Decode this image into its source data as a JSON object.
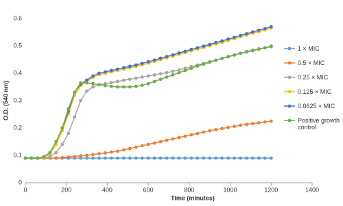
{
  "chart_data": {
    "type": "line",
    "xlabel": "Time (minutes)",
    "ylabel": "O.D. (540 nm)",
    "x": [
      0,
      30,
      60,
      90,
      120,
      150,
      180,
      210,
      240,
      270,
      300,
      330,
      360,
      390,
      420,
      450,
      480,
      510,
      540,
      570,
      600,
      630,
      660,
      690,
      720,
      750,
      780,
      810,
      840,
      870,
      900,
      930,
      960,
      990,
      1020,
      1050,
      1080,
      1110,
      1140,
      1170,
      1200
    ],
    "xlim": [
      0,
      1400
    ],
    "xticks": [
      0,
      200,
      400,
      600,
      800,
      1000,
      1200,
      1400
    ],
    "ylim": [
      0,
      0.6
    ],
    "yticks": [
      0,
      0.1,
      0.2,
      0.3,
      0.4,
      0.5,
      0.6
    ],
    "series": [
      {
        "name": "1 × MIC",
        "color": "#5b9bd5",
        "values": [
          0.09,
          0.09,
          0.09,
          0.09,
          0.09,
          0.09,
          0.09,
          0.09,
          0.09,
          0.09,
          0.09,
          0.09,
          0.09,
          0.09,
          0.09,
          0.09,
          0.09,
          0.09,
          0.09,
          0.09,
          0.09,
          0.09,
          0.09,
          0.09,
          0.09,
          0.09,
          0.09,
          0.09,
          0.09,
          0.09,
          0.09,
          0.09,
          0.09,
          0.09,
          0.09,
          0.09,
          0.09,
          0.09,
          0.09,
          0.09,
          0.09
        ]
      },
      {
        "name": "0.5 × MIC",
        "color": "#ed7d31",
        "values": [
          0.09,
          0.09,
          0.09,
          0.09,
          0.09,
          0.09,
          0.092,
          0.094,
          0.096,
          0.098,
          0.1,
          0.103,
          0.106,
          0.109,
          0.112,
          0.115,
          0.12,
          0.125,
          0.13,
          0.135,
          0.14,
          0.145,
          0.15,
          0.155,
          0.16,
          0.165,
          0.17,
          0.175,
          0.18,
          0.185,
          0.19,
          0.194,
          0.198,
          0.202,
          0.206,
          0.21,
          0.213,
          0.216,
          0.219,
          0.222,
          0.225
        ]
      },
      {
        "name": "0.25 × MIC",
        "color": "#a5a5a5",
        "values": [
          0.09,
          0.09,
          0.09,
          0.09,
          0.095,
          0.11,
          0.14,
          0.18,
          0.24,
          0.3,
          0.335,
          0.35,
          0.358,
          0.362,
          0.366,
          0.37,
          0.374,
          0.378,
          0.382,
          0.386,
          0.39,
          0.394,
          0.398,
          0.402,
          0.407,
          0.412,
          0.418,
          0.424,
          0.43,
          0.436,
          0.442,
          0.448,
          0.454,
          0.46,
          0.466,
          0.472,
          0.477,
          0.482,
          0.487,
          0.493,
          0.5
        ]
      },
      {
        "name": "0.125 × MIC",
        "color": "#ffc000",
        "values": [
          0.09,
          0.09,
          0.09,
          0.093,
          0.105,
          0.14,
          0.19,
          0.25,
          0.32,
          0.355,
          0.37,
          0.385,
          0.395,
          0.4,
          0.405,
          0.41,
          0.415,
          0.42,
          0.425,
          0.43,
          0.437,
          0.443,
          0.45,
          0.456,
          0.462,
          0.469,
          0.475,
          0.482,
          0.488,
          0.494,
          0.5,
          0.507,
          0.513,
          0.52,
          0.526,
          0.533,
          0.539,
          0.546,
          0.552,
          0.558,
          0.565
        ]
      },
      {
        "name": "0.0625 × MIC",
        "color": "#4472c4",
        "values": [
          0.09,
          0.09,
          0.09,
          0.095,
          0.11,
          0.15,
          0.2,
          0.26,
          0.33,
          0.36,
          0.375,
          0.39,
          0.4,
          0.405,
          0.41,
          0.415,
          0.42,
          0.425,
          0.43,
          0.436,
          0.442,
          0.448,
          0.455,
          0.461,
          0.467,
          0.474,
          0.48,
          0.487,
          0.493,
          0.499,
          0.505,
          0.512,
          0.518,
          0.525,
          0.531,
          0.538,
          0.544,
          0.551,
          0.557,
          0.563,
          0.57
        ]
      },
      {
        "name": "Positive growth control",
        "color": "#70ad47",
        "values": [
          0.09,
          0.09,
          0.09,
          0.095,
          0.11,
          0.15,
          0.2,
          0.27,
          0.33,
          0.365,
          0.365,
          0.362,
          0.358,
          0.355,
          0.352,
          0.35,
          0.35,
          0.35,
          0.352,
          0.356,
          0.362,
          0.37,
          0.378,
          0.386,
          0.394,
          0.402,
          0.41,
          0.418,
          0.426,
          0.433,
          0.44,
          0.447,
          0.454,
          0.461,
          0.467,
          0.473,
          0.479,
          0.484,
          0.489,
          0.493,
          0.497
        ]
      }
    ]
  }
}
